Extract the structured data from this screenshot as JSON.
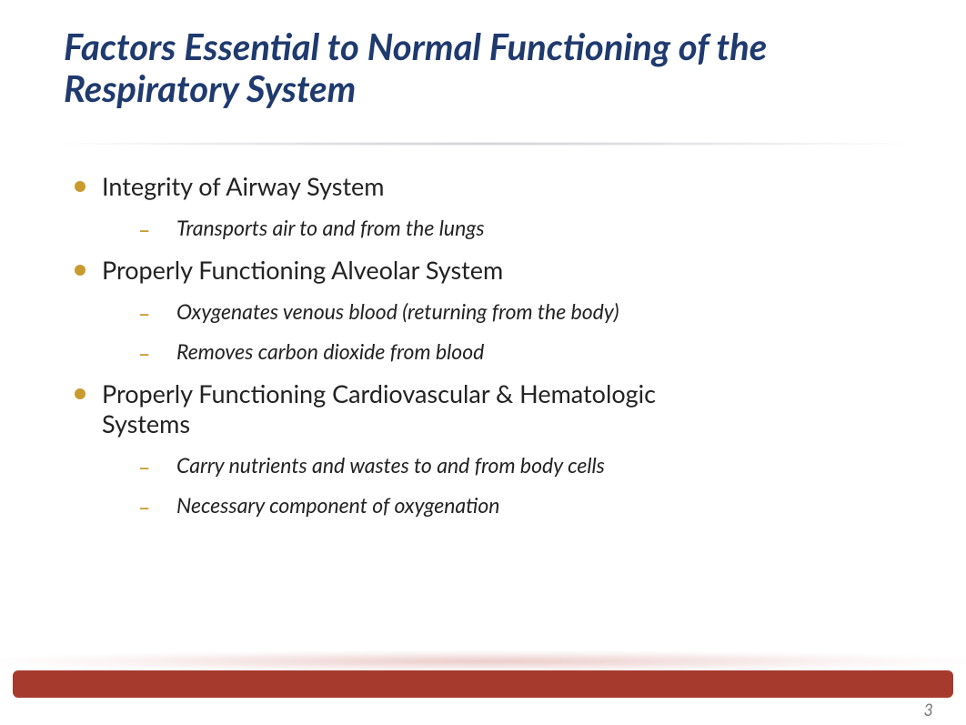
{
  "title": "Factors Essential to Normal Functioning of the Respiratory System",
  "title_color": "#1f3a6e",
  "title_fontsize": 40,
  "bullet_color": "#c99a2e",
  "dash_color": "#c99a2e",
  "body_text_color": "#222222",
  "l1_fontsize": 27,
  "l2_fontsize": 23,
  "footer_bar_color": "#a63a2d",
  "page_number": "3",
  "page_number_color": "#7a7a7a",
  "page_number_fontsize": 18,
  "background_color": "#ffffff",
  "items": [
    {
      "text": "Integrity of Airway System",
      "sub": [
        "Transports air to and from the lungs"
      ]
    },
    {
      "text": "Properly Functioning Alveolar System",
      "sub": [
        "Oxygenates venous blood (returning from the body)",
        "Removes carbon dioxide from blood"
      ]
    },
    {
      "text": "Properly Functioning Cardiovascular & Hematologic Systems",
      "sub": [
        "Carry nutrients and wastes to and from body cells",
        "Necessary component of oxygenation"
      ]
    }
  ]
}
